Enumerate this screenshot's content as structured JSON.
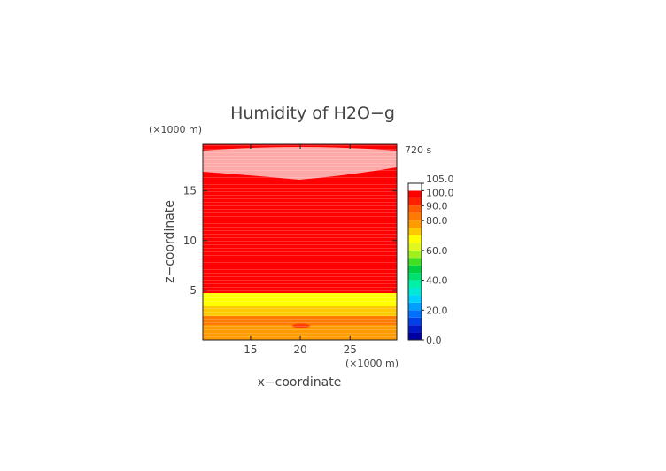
{
  "chart_data": {
    "type": "heatmap",
    "title": "Humidity of H2O−g",
    "time_label": "720 s",
    "xlabel": "x−coordinate",
    "ylabel": "z−coordinate",
    "x_unit": "(×1000 m)",
    "y_unit": "(×1000 m)",
    "xlim": [
      10.2,
      29.7
    ],
    "ylim": [
      0,
      19.7
    ],
    "x_ticks": [
      15,
      20,
      25
    ],
    "y_ticks": [
      5,
      10,
      15
    ],
    "legend_placement": "right",
    "colorbar": {
      "levels": [
        0,
        5,
        10,
        15,
        20,
        25,
        30,
        35,
        40,
        45,
        50,
        55,
        60,
        65,
        70,
        75,
        80,
        85,
        90,
        95,
        100,
        105
      ],
      "colors": [
        "#0000a0",
        "#0018c8",
        "#0040e8",
        "#0070ff",
        "#00a0ff",
        "#00d0ff",
        "#00e8d8",
        "#00f0a8",
        "#00e070",
        "#00d040",
        "#40e020",
        "#a0f020",
        "#e0f820",
        "#ffff00",
        "#ffc800",
        "#ff9a00",
        "#ff7a00",
        "#ff5a00",
        "#ff2000",
        "#ff0000",
        "#ffffff"
      ],
      "labels": [
        "0.0",
        "20.0",
        "40.0",
        "60.0",
        "80.0",
        "90.0",
        "100.0",
        "105.0"
      ],
      "label_values": [
        0,
        20,
        40,
        60,
        80,
        90,
        100,
        105
      ]
    },
    "field_bands": [
      {
        "z": [
          0.0,
          1.0
        ],
        "value": "82-88"
      },
      {
        "z": [
          1.0,
          2.0
        ],
        "value": "85-90"
      },
      {
        "z": [
          2.0,
          3.2
        ],
        "value": "78-82"
      },
      {
        "z": [
          3.2,
          4.8
        ],
        "value": "60-78"
      },
      {
        "z": [
          4.8,
          17.2
        ],
        "value": "95-100"
      },
      {
        "z": [
          17.2,
          19.7
        ],
        "value": "100-105"
      }
    ]
  }
}
